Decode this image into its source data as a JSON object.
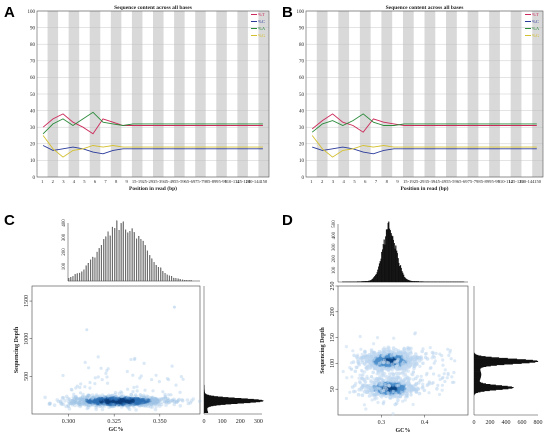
{
  "panels": [
    {
      "letter": "A"
    },
    {
      "letter": "B"
    },
    {
      "letter": "C"
    },
    {
      "letter": "D"
    }
  ],
  "chart_data": [
    {
      "id": "A",
      "type": "line",
      "title": "Sequence content across all bases",
      "xlabel": "Position in read (bp)",
      "ylim": [
        0,
        100
      ],
      "yticks": [
        0,
        10,
        20,
        30,
        40,
        50,
        60,
        70,
        80,
        90,
        100
      ],
      "x": [
        "1",
        "2",
        "3",
        "4",
        "5",
        "6",
        "7",
        "8",
        "9",
        "15-19",
        "25-29",
        "35-39",
        "45-49",
        "55-59",
        "65-69",
        "75-79",
        "85-89",
        "95-99",
        "105-109",
        "115-119",
        "125-129",
        "135-139",
        "145-149"
      ],
      "xticks": [
        "1",
        "2",
        "3",
        "4",
        "5",
        "6",
        "7",
        "8",
        "9",
        "15-19",
        "25-29",
        "35-39",
        "45-49",
        "55-59",
        "65-69",
        "75-79",
        "85-89",
        "95-99",
        "110-114",
        "125-129",
        "140-144",
        "150"
      ],
      "series": [
        {
          "name": "%T",
          "color": "#cc2a5a",
          "values": [
            30,
            35,
            38,
            33,
            30,
            26,
            35,
            33,
            31,
            31,
            31,
            31,
            31,
            31,
            31,
            31,
            31,
            31,
            31,
            31,
            31,
            31,
            31
          ]
        },
        {
          "name": "%C",
          "color": "#2a3a9a",
          "values": [
            19,
            16,
            17,
            18,
            17,
            15,
            14,
            16,
            17,
            17,
            17,
            17,
            17,
            17,
            17,
            17,
            17,
            17,
            17,
            17,
            17,
            17,
            17
          ]
        },
        {
          "name": "%A",
          "color": "#2a8a3a",
          "values": [
            26,
            32,
            35,
            31,
            35,
            39,
            33,
            32,
            31,
            32,
            32,
            32,
            32,
            32,
            32,
            32,
            32,
            32,
            32,
            32,
            32,
            32,
            32
          ]
        },
        {
          "name": "%G",
          "color": "#d4c030",
          "values": [
            25,
            17,
            12,
            16,
            17,
            19,
            18,
            19,
            18,
            18,
            18,
            18,
            18,
            18,
            18,
            18,
            18,
            18,
            18,
            18,
            18,
            18,
            18
          ]
        }
      ]
    },
    {
      "id": "B",
      "type": "line",
      "title": "Sequence content across all bases",
      "xlabel": "Position in read (bp)",
      "ylim": [
        0,
        100
      ],
      "yticks": [
        0,
        10,
        20,
        30,
        40,
        50,
        60,
        70,
        80,
        90,
        100
      ],
      "x": [
        "1",
        "2",
        "3",
        "4",
        "5",
        "6",
        "7",
        "8",
        "9",
        "15-19",
        "25-29",
        "35-39",
        "45-49",
        "55-59",
        "65-69",
        "75-79",
        "85-89",
        "95-99",
        "105-109",
        "115-119",
        "125-129",
        "135-139",
        "145-149"
      ],
      "xticks": [
        "1",
        "2",
        "3",
        "4",
        "5",
        "6",
        "7",
        "8",
        "9",
        "15-19",
        "25-29",
        "35-39",
        "45-49",
        "55-59",
        "65-69",
        "75-79",
        "85-89",
        "95-99",
        "110-114",
        "125-129",
        "140-144",
        "150"
      ],
      "series": [
        {
          "name": "%T",
          "color": "#cc2a5a",
          "values": [
            29,
            34,
            38,
            33,
            31,
            27,
            35,
            33,
            32,
            31,
            31,
            31,
            31,
            31,
            31,
            31,
            31,
            31,
            31,
            31,
            31,
            31,
            31
          ]
        },
        {
          "name": "%C",
          "color": "#2a3a9a",
          "values": [
            18,
            16,
            17,
            18,
            17,
            15,
            14,
            16,
            17,
            17,
            17,
            17,
            17,
            17,
            17,
            17,
            17,
            17,
            17,
            17,
            17,
            17,
            17
          ]
        },
        {
          "name": "%A",
          "color": "#2a8a3a",
          "values": [
            27,
            32,
            34,
            31,
            34,
            38,
            33,
            31,
            31,
            32,
            32,
            32,
            32,
            32,
            32,
            32,
            32,
            32,
            32,
            32,
            32,
            32,
            32
          ]
        },
        {
          "name": "%G",
          "color": "#d4c030",
          "values": [
            25,
            17,
            12,
            16,
            17,
            19,
            18,
            19,
            18,
            18,
            18,
            18,
            18,
            18,
            18,
            18,
            18,
            18,
            18,
            18,
            18,
            18,
            18
          ]
        }
      ]
    },
    {
      "id": "C",
      "type": "scatter",
      "xlabel": "GC%",
      "ylabel": "Sequencing Depth",
      "xlim": [
        0.28,
        0.372
      ],
      "ylim": [
        0,
        1700
      ],
      "xticks": [
        {
          "v": 0.3,
          "label": "0.300"
        },
        {
          "v": 0.325,
          "label": "0.325"
        },
        {
          "v": 0.35,
          "label": "0.350"
        }
      ],
      "yticks": [
        500,
        1000,
        1500
      ],
      "density_center": {
        "gc": 0.327,
        "depth": 170
      },
      "top_hist": {
        "ticks": [
          100,
          200,
          300,
          400
        ],
        "max": 400
      },
      "right_hist": {
        "ticks": [
          0,
          100,
          200,
          300
        ],
        "max": 320
      }
    },
    {
      "id": "D",
      "type": "scatter",
      "xlabel": "GC%",
      "ylabel": "Sequencing Depth",
      "xlim": [
        0.2,
        0.5
      ],
      "ylim": [
        0,
        250
      ],
      "xticks": [
        {
          "v": 0.3,
          "label": "0.3"
        },
        {
          "v": 0.4,
          "label": "0.4"
        }
      ],
      "yticks": [
        50,
        100,
        150,
        200,
        250
      ],
      "density_centers": [
        {
          "gc": 0.32,
          "depth": 105
        },
        {
          "gc": 0.32,
          "depth": 52
        }
      ],
      "top_hist": {
        "ticks": [
          100,
          200,
          300,
          400,
          500
        ],
        "max": 500
      },
      "right_hist": {
        "ticks": [
          0,
          200,
          400,
          600,
          800
        ],
        "max": 800
      }
    }
  ]
}
